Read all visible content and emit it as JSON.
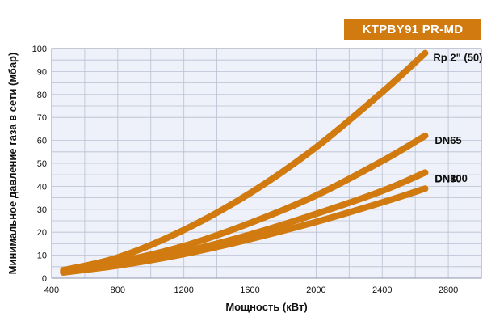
{
  "chart_data": {
    "type": "line",
    "badge": "KTPBY91 PR-MD",
    "xlabel": "Мощность  (кВт)",
    "ylabel": "Минимальное давление газа в сети (мбар)",
    "xlim": [
      400,
      3000
    ],
    "ylim": [
      0,
      100
    ],
    "x_ticks": [
      400,
      800,
      1200,
      1600,
      2000,
      2400,
      2800
    ],
    "y_ticks": [
      0,
      10,
      20,
      30,
      40,
      50,
      60,
      70,
      80,
      90,
      100
    ],
    "grid": true,
    "colors": {
      "series": "#d07a10",
      "background": "#eef1f9",
      "grid": "#b8c0d2",
      "badge": "#d07a10"
    },
    "series": [
      {
        "name": "Rp 2\" (50)",
        "x": [
          470,
          800,
          1200,
          1600,
          2000,
          2400,
          2660
        ],
        "y": [
          3.5,
          9,
          21,
          37,
          57,
          81,
          98
        ]
      },
      {
        "name": "DN65",
        "x": [
          470,
          800,
          1200,
          1600,
          2000,
          2400,
          2660
        ],
        "y": [
          3.0,
          7,
          14,
          24,
          36,
          51,
          62
        ]
      },
      {
        "name": "DN80",
        "x": [
          470,
          800,
          1200,
          1600,
          2000,
          2400,
          2660
        ],
        "y": [
          2.5,
          6,
          11.5,
          19,
          28,
          38,
          46
        ]
      },
      {
        "name": "DN100",
        "x": [
          470,
          800,
          1200,
          1600,
          2000,
          2400,
          2660
        ],
        "y": [
          2.5,
          5.5,
          10.5,
          17,
          24.5,
          33,
          39
        ]
      }
    ]
  }
}
